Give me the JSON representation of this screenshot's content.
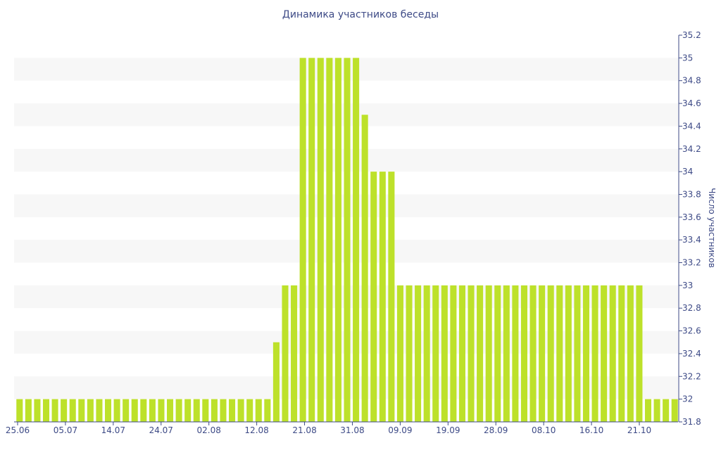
{
  "chart_data": {
    "type": "bar",
    "title": "Динамика участников беседы",
    "xlabel": "",
    "ylabel": "Число участников",
    "ylim": [
      31.8,
      35.2
    ],
    "y_ticks": [
      "31.8",
      "32",
      "32.2",
      "32.4",
      "32.6",
      "32.8",
      "33",
      "33.2",
      "33.4",
      "33.6",
      "33.8",
      "34",
      "34.2",
      "34.4",
      "34.6",
      "34.8",
      "35",
      "35.2"
    ],
    "y_axis_side": "right",
    "grid": "alternating horizontal bands",
    "bar_color": "#bde12a",
    "x_ticks": [
      "25.06",
      "05.07",
      "14.07",
      "24.07",
      "02.08",
      "12.08",
      "21.08",
      "31.08",
      "09.09",
      "19.09",
      "28.09",
      "08.10",
      "16.10",
      "21.10"
    ],
    "values": [
      32,
      32,
      32,
      32,
      32,
      32,
      32,
      32,
      32,
      32,
      32,
      32,
      32,
      32,
      32,
      32,
      32,
      32,
      32,
      32,
      32,
      32,
      32,
      32,
      32,
      32,
      32,
      32,
      32,
      32.5,
      33,
      33,
      35,
      35,
      35,
      35,
      35,
      35,
      35,
      34.5,
      34,
      34,
      34,
      33,
      33,
      33,
      33,
      33,
      33,
      33,
      33,
      33,
      33,
      33,
      33,
      33,
      33,
      33,
      33,
      33,
      33,
      33,
      33,
      33,
      33,
      33,
      33,
      33,
      33,
      33,
      33,
      32,
      32,
      32,
      32
    ]
  }
}
